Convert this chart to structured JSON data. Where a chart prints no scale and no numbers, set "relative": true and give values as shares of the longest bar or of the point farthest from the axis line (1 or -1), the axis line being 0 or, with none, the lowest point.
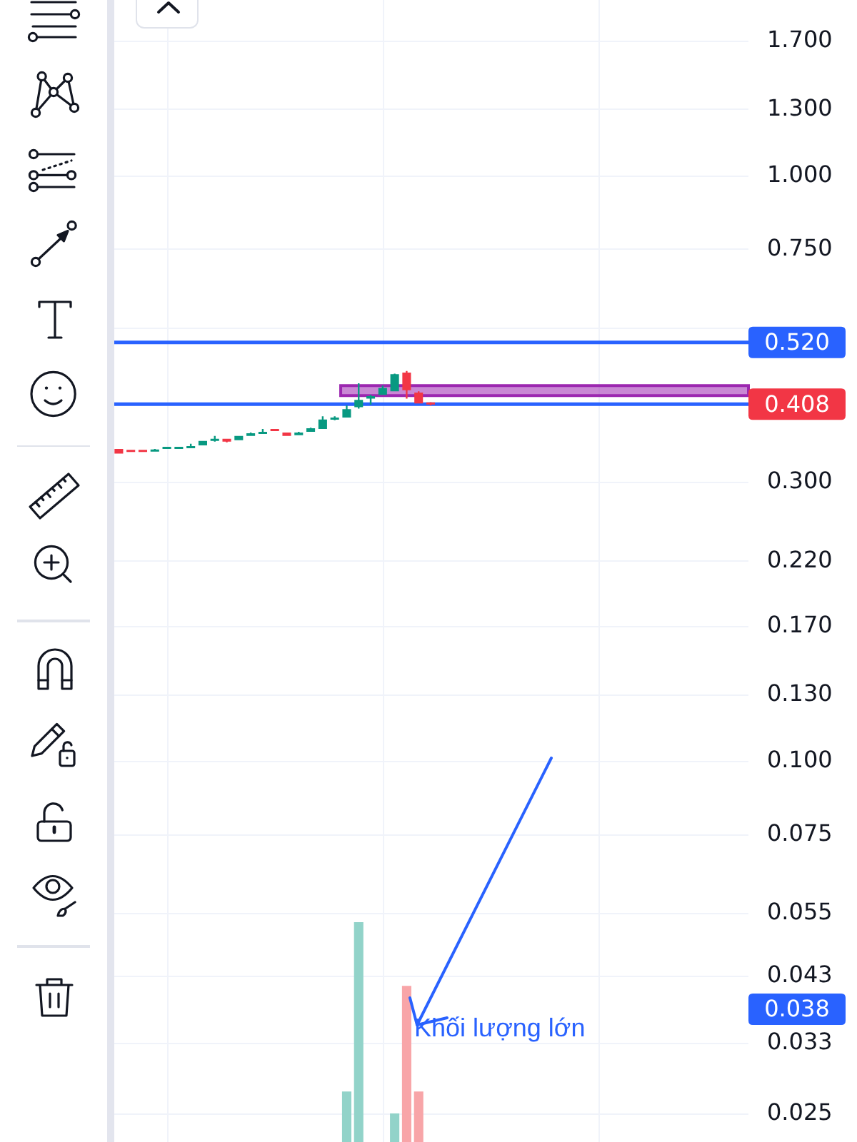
{
  "chart_data": [
    {
      "type": "candlestick",
      "categories": [
        null,
        null,
        null,
        null,
        null,
        null,
        null,
        null,
        null,
        null,
        null,
        null,
        null,
        null,
        null,
        null,
        null,
        null,
        null,
        null,
        null,
        null,
        null,
        null,
        null,
        null,
        null,
        null,
        null,
        null,
        null,
        null,
        null,
        null,
        null,
        null,
        null,
        null,
        null,
        null,
        null,
        null,
        null,
        null,
        null,
        null,
        null,
        null,
        null,
        null,
        null,
        null,
        null
      ],
      "ohlc": [
        [
          0.342,
          0.342,
          0.336,
          0.336
        ],
        [
          0.34,
          0.34,
          0.339,
          0.339
        ],
        [
          0.34,
          0.34,
          0.339,
          0.339
        ],
        [
          0.339,
          0.342,
          0.339,
          0.341
        ],
        [
          0.343,
          0.344,
          0.343,
          0.344
        ],
        [
          0.343,
          0.344,
          0.343,
          0.344
        ],
        [
          0.344,
          0.349,
          0.344,
          0.345
        ],
        [
          0.347,
          0.353,
          0.347,
          0.353
        ],
        [
          0.353,
          0.36,
          0.352,
          0.356
        ],
        [
          0.356,
          0.356,
          0.351,
          0.352
        ],
        [
          0.354,
          0.36,
          0.354,
          0.36
        ],
        [
          0.36,
          0.365,
          0.36,
          0.364
        ],
        [
          0.363,
          0.37,
          0.363,
          0.366
        ],
        [
          0.369,
          0.369,
          0.368,
          0.368
        ],
        [
          0.365,
          0.365,
          0.36,
          0.36
        ],
        [
          0.361,
          0.366,
          0.361,
          0.365
        ],
        [
          0.366,
          0.372,
          0.366,
          0.371
        ],
        [
          0.37,
          0.389,
          0.37,
          0.384
        ],
        [
          0.384,
          0.389,
          0.383,
          0.387
        ],
        [
          0.387,
          0.406,
          0.387,
          0.4
        ],
        [
          0.403,
          0.443,
          0.401,
          0.415
        ],
        [
          0.417,
          0.423,
          0.407,
          0.421
        ],
        [
          0.423,
          0.439,
          0.423,
          0.435
        ],
        [
          0.429,
          0.46,
          0.429,
          0.459
        ],
        [
          0.462,
          0.465,
          0.417,
          0.431
        ],
        [
          0.427,
          0.429,
          0.409,
          0.409
        ],
        [
          0.41,
          0.411,
          0.406,
          0.408
        ],
        null,
        null,
        null,
        null,
        null,
        null,
        null,
        null,
        null,
        null,
        null,
        null,
        null,
        null,
        null,
        null,
        null,
        null,
        null,
        null,
        null,
        null,
        null,
        null,
        null,
        null
      ],
      "colors": [
        "#f23645",
        "#f23645",
        "#f23645",
        "#089981",
        "#089981",
        "#089981",
        "#089981",
        "#089981",
        "#089981",
        "#f23645",
        "#089981",
        "#089981",
        "#089981",
        "#f23645",
        "#f23645",
        "#089981",
        "#089981",
        "#089981",
        "#089981",
        "#089981",
        "#089981",
        "#089981",
        "#089981",
        "#089981",
        "#f23645",
        "#f23645",
        "#f23645",
        null,
        null,
        null,
        null,
        null,
        null,
        null,
        null,
        null,
        null,
        null,
        null,
        null,
        null,
        null,
        null,
        null,
        null,
        null,
        null,
        null,
        null,
        null,
        null,
        null,
        null
      ],
      "log": true,
      "ylim": [
        0.0224,
        2.0
      ],
      "yticks": [
        {
          "value": 1.7,
          "label": "1.700"
        },
        {
          "value": 1.3,
          "label": "1.300"
        },
        {
          "value": 1.0,
          "label": "1.000"
        },
        {
          "value": 0.75,
          "label": "0.750"
        },
        {
          "value": 0.55,
          "label": null
        },
        {
          "value": 0.3,
          "label": "0.300"
        },
        {
          "value": 0.22,
          "label": "0.220"
        },
        {
          "value": 0.17,
          "label": "0.170"
        },
        {
          "value": 0.13,
          "label": "0.130"
        },
        {
          "value": 0.1,
          "label": "0.100"
        },
        {
          "value": 0.075,
          "label": "0.075"
        },
        {
          "value": 0.055,
          "label": "0.055"
        },
        {
          "value": 0.043,
          "label": "0.043"
        },
        {
          "value": 0.033,
          "label": "0.033"
        },
        {
          "value": 0.025,
          "label": "0.025"
        }
      ],
      "grid": true,
      "tick_labels": "y",
      "ref_lines": [
        {
          "axis": "y",
          "value": 0.52,
          "label": "0.520",
          "color": "#2962ff"
        },
        {
          "axis": "y",
          "value": 0.408,
          "label": "0.408",
          "color": "#2962ff"
        }
      ],
      "bands": [
        {
          "axis": "y",
          "from": 0.422,
          "to": 0.439,
          "color": "#9c27b0"
        }
      ],
      "annotations": [
        "0.038"
      ]
    },
    {
      "type": "bar",
      "relative": true,
      "categories": [
        null,
        null,
        null,
        null,
        null,
        null,
        null,
        null,
        null,
        null,
        null,
        null,
        null,
        null,
        null,
        null,
        null,
        null,
        null,
        null,
        null,
        null,
        null,
        null,
        null,
        null,
        null,
        null,
        null,
        null,
        null,
        null,
        null,
        null,
        null,
        null,
        null,
        null,
        null,
        null,
        null,
        null,
        null,
        null,
        null,
        null,
        null,
        null,
        null,
        null,
        null,
        null,
        null
      ],
      "values": [
        null,
        null,
        null,
        null,
        null,
        null,
        null,
        null,
        null,
        null,
        null,
        null,
        null,
        null,
        null,
        null,
        null,
        null,
        null,
        0.23,
        1,
        null,
        null,
        0.13,
        0.71,
        0.23,
        null,
        null,
        null,
        null,
        null,
        null,
        null,
        null,
        null,
        null,
        null,
        null,
        null,
        null,
        null,
        null,
        null,
        null,
        null,
        null,
        null,
        null,
        null,
        null,
        null,
        null,
        null
      ],
      "colors": [
        null,
        null,
        null,
        null,
        null,
        null,
        null,
        null,
        null,
        null,
        null,
        null,
        null,
        null,
        null,
        null,
        null,
        null,
        null,
        "#92d3c9",
        "#92d3c9",
        null,
        null,
        "#92d3c9",
        "#f8a5a8",
        "#f8a5a8",
        null,
        null,
        null,
        null,
        null,
        null,
        null,
        null,
        null,
        null,
        null,
        null,
        null,
        null,
        null,
        null,
        null,
        null,
        null,
        null,
        null,
        null,
        null,
        null,
        null,
        null,
        null
      ],
      "annotations": [
        "Khối lượng lớn"
      ]
    }
  ]
}
